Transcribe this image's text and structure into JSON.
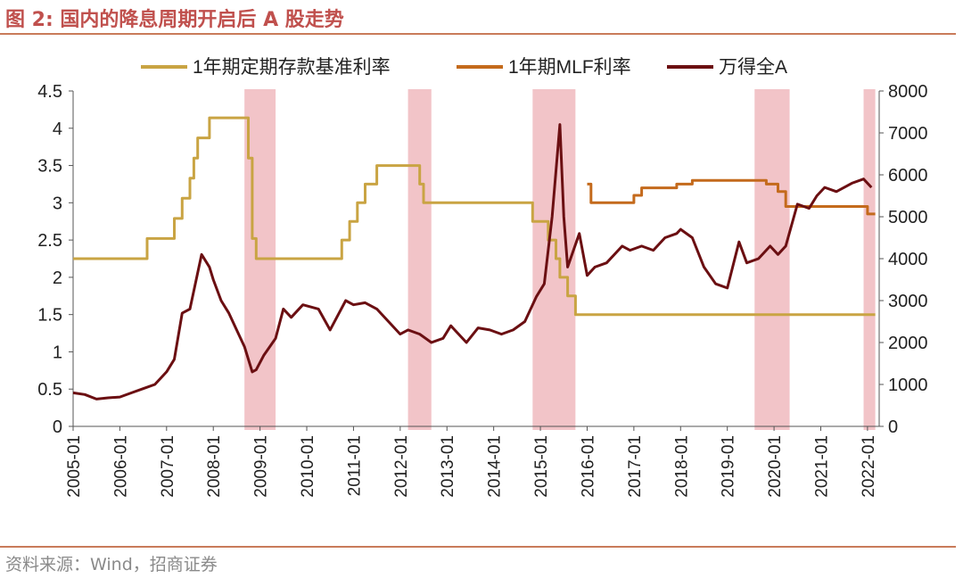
{
  "figure": {
    "title": "图 2:  国内的降息周期开启后 A 股走势",
    "source": "资料来源：Wind，招商证券"
  },
  "colors": {
    "deposit": "#c9a443",
    "mlf": "#c46a1c",
    "wind": "#6b0f12",
    "shade": "#f2c4c8",
    "accent": "#c0504d"
  },
  "chart_data": {
    "type": "line",
    "title": "",
    "xlabel": "",
    "ylabel": "",
    "ylim": [
      0,
      4.5
    ],
    "y2lim": [
      0,
      8000
    ],
    "yticks": [
      "0",
      "0.5",
      "1",
      "1.5",
      "2",
      "2.5",
      "3",
      "3.5",
      "4",
      "4.5"
    ],
    "y2ticks": [
      "0",
      "1000",
      "2000",
      "3000",
      "4000",
      "5000",
      "6000",
      "7000",
      "8000"
    ],
    "xticks": [
      "2005-01",
      "2006-01",
      "2007-01",
      "2008-01",
      "2009-01",
      "2010-01",
      "2011-01",
      "2012-01",
      "2013-01",
      "2014-01",
      "2015-01",
      "2016-01",
      "2017-01",
      "2018-01",
      "2019-01",
      "2020-01",
      "2021-01",
      "2022-01"
    ],
    "legend_position": "top",
    "shaded_periods": [
      [
        "2008-09",
        "2009-05"
      ],
      [
        "2012-03",
        "2012-09"
      ],
      [
        "2014-11",
        "2015-10"
      ],
      [
        "2019-08",
        "2020-05"
      ],
      [
        "2021-12",
        "2022-03"
      ]
    ],
    "series": [
      {
        "name": "1年期定期存款基准利率",
        "axis": "left",
        "step": true,
        "points": [
          [
            "2005-01",
            2.25
          ],
          [
            "2006-08",
            2.52
          ],
          [
            "2007-03",
            2.79
          ],
          [
            "2007-05",
            3.06
          ],
          [
            "2007-07",
            3.33
          ],
          [
            "2007-08",
            3.6
          ],
          [
            "2007-09",
            3.87
          ],
          [
            "2007-12",
            4.14
          ],
          [
            "2008-10",
            3.87
          ],
          [
            "2008-10",
            3.6
          ],
          [
            "2008-11",
            2.52
          ],
          [
            "2008-12",
            2.25
          ],
          [
            "2010-10",
            2.5
          ],
          [
            "2010-12",
            2.75
          ],
          [
            "2011-02",
            3.0
          ],
          [
            "2011-04",
            3.25
          ],
          [
            "2011-07",
            3.5
          ],
          [
            "2012-06",
            3.25
          ],
          [
            "2012-07",
            3.0
          ],
          [
            "2014-11",
            2.75
          ],
          [
            "2015-03",
            2.5
          ],
          [
            "2015-05",
            2.25
          ],
          [
            "2015-06",
            2.0
          ],
          [
            "2015-08",
            1.75
          ],
          [
            "2015-10",
            1.5
          ],
          [
            "2022-03",
            1.5
          ]
        ]
      },
      {
        "name": "1年期MLF利率",
        "axis": "left",
        "step": true,
        "points": [
          [
            "2016-01",
            3.25
          ],
          [
            "2016-02",
            3.0
          ],
          [
            "2017-01",
            3.1
          ],
          [
            "2017-03",
            3.2
          ],
          [
            "2017-12",
            3.25
          ],
          [
            "2018-04",
            3.3
          ],
          [
            "2019-11",
            3.25
          ],
          [
            "2020-02",
            3.15
          ],
          [
            "2020-04",
            2.95
          ],
          [
            "2022-01",
            2.85
          ],
          [
            "2022-03",
            2.85
          ]
        ]
      },
      {
        "name": "万得全A",
        "axis": "right",
        "step": false,
        "points": [
          [
            "2005-01",
            800
          ],
          [
            "2005-04",
            760
          ],
          [
            "2005-07",
            650
          ],
          [
            "2005-10",
            680
          ],
          [
            "2006-01",
            700
          ],
          [
            "2006-04",
            800
          ],
          [
            "2006-07",
            900
          ],
          [
            "2006-10",
            1000
          ],
          [
            "2007-01",
            1300
          ],
          [
            "2007-03",
            1600
          ],
          [
            "2007-05",
            2700
          ],
          [
            "2007-07",
            2800
          ],
          [
            "2007-10",
            4100
          ],
          [
            "2007-12",
            3800
          ],
          [
            "2008-01",
            3500
          ],
          [
            "2008-03",
            3000
          ],
          [
            "2008-05",
            2700
          ],
          [
            "2008-07",
            2300
          ],
          [
            "2008-09",
            1900
          ],
          [
            "2008-11",
            1300
          ],
          [
            "2008-12",
            1350
          ],
          [
            "2009-02",
            1700
          ],
          [
            "2009-05",
            2100
          ],
          [
            "2009-07",
            2800
          ],
          [
            "2009-09",
            2600
          ],
          [
            "2009-12",
            2900
          ],
          [
            "2010-04",
            2800
          ],
          [
            "2010-07",
            2300
          ],
          [
            "2010-11",
            3000
          ],
          [
            "2011-01",
            2900
          ],
          [
            "2011-04",
            2950
          ],
          [
            "2011-07",
            2800
          ],
          [
            "2011-10",
            2500
          ],
          [
            "2012-01",
            2200
          ],
          [
            "2012-03",
            2300
          ],
          [
            "2012-06",
            2200
          ],
          [
            "2012-09",
            2000
          ],
          [
            "2012-12",
            2100
          ],
          [
            "2013-02",
            2400
          ],
          [
            "2013-06",
            2000
          ],
          [
            "2013-09",
            2350
          ],
          [
            "2013-12",
            2300
          ],
          [
            "2014-03",
            2200
          ],
          [
            "2014-06",
            2300
          ],
          [
            "2014-09",
            2500
          ],
          [
            "2014-12",
            3100
          ],
          [
            "2015-02",
            3400
          ],
          [
            "2015-04",
            5000
          ],
          [
            "2015-06",
            7200
          ],
          [
            "2015-07",
            5000
          ],
          [
            "2015-08",
            3800
          ],
          [
            "2015-11",
            4600
          ],
          [
            "2016-01",
            3600
          ],
          [
            "2016-03",
            3800
          ],
          [
            "2016-06",
            3900
          ],
          [
            "2016-10",
            4300
          ],
          [
            "2016-12",
            4200
          ],
          [
            "2017-03",
            4300
          ],
          [
            "2017-06",
            4200
          ],
          [
            "2017-09",
            4500
          ],
          [
            "2017-12",
            4600
          ],
          [
            "2018-01",
            4700
          ],
          [
            "2018-04",
            4500
          ],
          [
            "2018-07",
            3800
          ],
          [
            "2018-10",
            3400
          ],
          [
            "2019-01",
            3300
          ],
          [
            "2019-04",
            4400
          ],
          [
            "2019-06",
            3900
          ],
          [
            "2019-09",
            4000
          ],
          [
            "2019-12",
            4300
          ],
          [
            "2020-02",
            4100
          ],
          [
            "2020-04",
            4300
          ],
          [
            "2020-07",
            5300
          ],
          [
            "2020-10",
            5200
          ],
          [
            "2020-12",
            5500
          ],
          [
            "2021-02",
            5700
          ],
          [
            "2021-05",
            5600
          ],
          [
            "2021-09",
            5800
          ],
          [
            "2021-12",
            5900
          ],
          [
            "2022-02",
            5700
          ]
        ]
      }
    ]
  }
}
